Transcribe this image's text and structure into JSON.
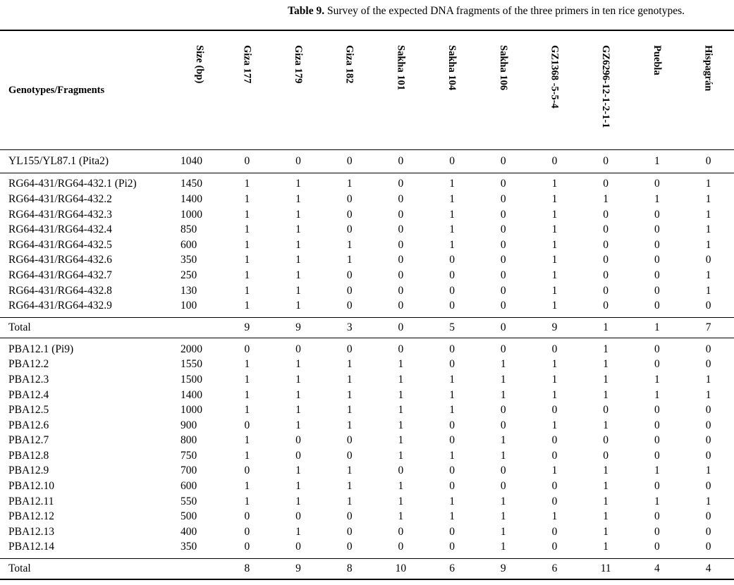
{
  "caption": {
    "label": "Table 9.",
    "text": " Survey of the expected DNA fragments of the three primers in ten rice genotypes."
  },
  "headers": {
    "label": "Genotypes/Fragments",
    "size": "Size (bp)",
    "genotypes": [
      "Giza 177",
      "Giza 179",
      "Giza 182",
      "Sakha 101",
      "Sakha 104",
      "Sakha 106",
      "GZ1368 -5-5-4",
      "GZ6296-12-1-2-1-1",
      "Puebla",
      "Hispagrán"
    ]
  },
  "sections": [
    {
      "rows": [
        {
          "label": "YL155/YL87.1 (Pita2)",
          "size": "1040",
          "values": [
            "0",
            "0",
            "0",
            "0",
            "0",
            "0",
            "0",
            "0",
            "1",
            "0"
          ]
        }
      ]
    },
    {
      "rows": [
        {
          "label": "RG64-431/RG64-432.1 (Pi2)",
          "size": "1450",
          "values": [
            "1",
            "1",
            "1",
            "0",
            "1",
            "0",
            "1",
            "0",
            "0",
            "1"
          ]
        },
        {
          "label": "RG64-431/RG64-432.2",
          "size": "1400",
          "values": [
            "1",
            "1",
            "0",
            "0",
            "1",
            "0",
            "1",
            "1",
            "1",
            "1"
          ]
        },
        {
          "label": "RG64-431/RG64-432.3",
          "size": "1000",
          "values": [
            "1",
            "1",
            "0",
            "0",
            "1",
            "0",
            "1",
            "0",
            "0",
            "1"
          ]
        },
        {
          "label": "RG64-431/RG64-432.4",
          "size": "850",
          "values": [
            "1",
            "1",
            "0",
            "0",
            "1",
            "0",
            "1",
            "0",
            "0",
            "1"
          ]
        },
        {
          "label": "RG64-431/RG64-432.5",
          "size": "600",
          "values": [
            "1",
            "1",
            "1",
            "0",
            "1",
            "0",
            "1",
            "0",
            "0",
            "1"
          ]
        },
        {
          "label": "RG64-431/RG64-432.6",
          "size": "350",
          "values": [
            "1",
            "1",
            "1",
            "0",
            "0",
            "0",
            "1",
            "0",
            "0",
            "0"
          ]
        },
        {
          "label": "RG64-431/RG64-432.7",
          "size": "250",
          "values": [
            "1",
            "1",
            "0",
            "0",
            "0",
            "0",
            "1",
            "0",
            "0",
            "1"
          ]
        },
        {
          "label": "RG64-431/RG64-432.8",
          "size": "130",
          "values": [
            "1",
            "1",
            "0",
            "0",
            "0",
            "0",
            "1",
            "0",
            "0",
            "1"
          ]
        },
        {
          "label": "RG64-431/RG64-432.9",
          "size": "100",
          "values": [
            "1",
            "1",
            "0",
            "0",
            "0",
            "0",
            "1",
            "0",
            "0",
            "0"
          ]
        }
      ],
      "total": {
        "label": "Total",
        "values": [
          "9",
          "9",
          "3",
          "0",
          "5",
          "0",
          "9",
          "1",
          "1",
          "7"
        ]
      }
    },
    {
      "rows": [
        {
          "label": "PBA12.1 (Pi9)",
          "size": "2000",
          "values": [
            "0",
            "0",
            "0",
            "0",
            "0",
            "0",
            "0",
            "1",
            "0",
            "0"
          ]
        },
        {
          "label": "PBA12.2",
          "size": "1550",
          "values": [
            "1",
            "1",
            "1",
            "1",
            "0",
            "1",
            "1",
            "1",
            "0",
            "0"
          ]
        },
        {
          "label": "PBA12.3",
          "size": "1500",
          "values": [
            "1",
            "1",
            "1",
            "1",
            "1",
            "1",
            "1",
            "1",
            "1",
            "1"
          ]
        },
        {
          "label": "PBA12.4",
          "size": "1400",
          "values": [
            "1",
            "1",
            "1",
            "1",
            "1",
            "1",
            "1",
            "1",
            "1",
            "1"
          ]
        },
        {
          "label": "PBA12.5",
          "size": "1000",
          "values": [
            "1",
            "1",
            "1",
            "1",
            "1",
            "0",
            "0",
            "0",
            "0",
            "0"
          ]
        },
        {
          "label": "PBA12.6",
          "size": "900",
          "values": [
            "0",
            "1",
            "1",
            "1",
            "0",
            "0",
            "1",
            "1",
            "0",
            "0"
          ]
        },
        {
          "label": "PBA12.7",
          "size": "800",
          "values": [
            "1",
            "0",
            "0",
            "1",
            "0",
            "1",
            "0",
            "0",
            "0",
            "0"
          ]
        },
        {
          "label": "PBA12.8",
          "size": "750",
          "values": [
            "1",
            "0",
            "0",
            "1",
            "1",
            "1",
            "0",
            "0",
            "0",
            "0"
          ]
        },
        {
          "label": "PBA12.9",
          "size": "700",
          "values": [
            "0",
            "1",
            "1",
            "0",
            "0",
            "0",
            "1",
            "1",
            "1",
            "1"
          ]
        },
        {
          "label": "PBA12.10",
          "size": "600",
          "values": [
            "1",
            "1",
            "1",
            "1",
            "0",
            "0",
            "0",
            "1",
            "0",
            "0"
          ]
        },
        {
          "label": "PBA12.11",
          "size": "550",
          "values": [
            "1",
            "1",
            "1",
            "1",
            "1",
            "1",
            "0",
            "1",
            "1",
            "1"
          ]
        },
        {
          "label": "PBA12.12",
          "size": "500",
          "values": [
            "0",
            "0",
            "0",
            "1",
            "1",
            "1",
            "1",
            "1",
            "0",
            "0"
          ]
        },
        {
          "label": "PBA12.13",
          "size": "400",
          "values": [
            "0",
            "1",
            "0",
            "0",
            "0",
            "1",
            "0",
            "1",
            "0",
            "0"
          ]
        },
        {
          "label": "PBA12.14",
          "size": "350",
          "values": [
            "0",
            "0",
            "0",
            "0",
            "0",
            "1",
            "0",
            "1",
            "0",
            "0"
          ]
        }
      ],
      "total": {
        "label": "Total",
        "values": [
          "8",
          "9",
          "8",
          "10",
          "6",
          "9",
          "6",
          "11",
          "4",
          "4"
        ]
      }
    }
  ]
}
